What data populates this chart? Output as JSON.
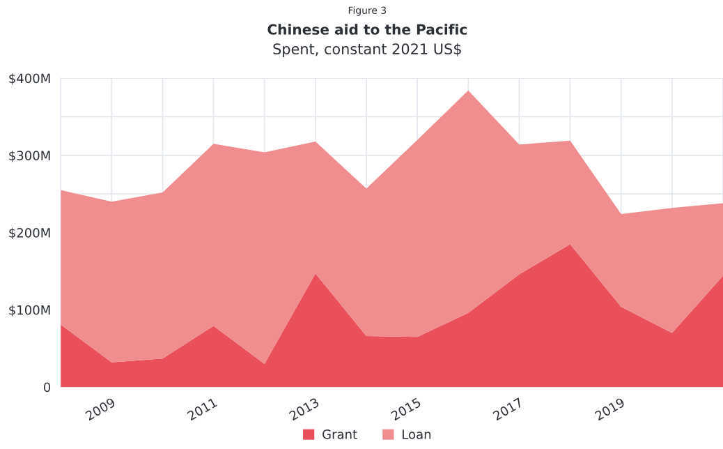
{
  "chart_data": {
    "type": "area",
    "title": "Chinese aid to the Pacific",
    "subtitle": "Spent, constant 2021 US$",
    "annotations": [
      "Figure 3"
    ],
    "x": [
      2008,
      2009,
      2010,
      2011,
      2012,
      2013,
      2014,
      2015,
      2016,
      2017,
      2018,
      2019,
      2020,
      2021
    ],
    "stacked": true,
    "series": [
      {
        "name": "Grant",
        "color": "#e9505a",
        "values": [
          81,
          32,
          37,
          79,
          30,
          147,
          66,
          65,
          96,
          146,
          185,
          104,
          70,
          144
        ]
      },
      {
        "name": "Loan",
        "color": "#f08e8f",
        "values": [
          174,
          208,
          215,
          236,
          274,
          171,
          191,
          255,
          288,
          168,
          134,
          120,
          162,
          94
        ]
      }
    ],
    "xlim": [
      2008,
      2021
    ],
    "xticks": [
      {
        "value": 2008,
        "label": null
      },
      2009,
      {
        "value": 2010,
        "label": null
      },
      2011,
      {
        "value": 2012,
        "label": null
      },
      2013,
      {
        "value": 2014,
        "label": null
      },
      2015,
      {
        "value": 2016,
        "label": null
      },
      2017,
      {
        "value": 2018,
        "label": null
      },
      2019,
      {
        "value": 2020,
        "label": null
      },
      {
        "value": 2021,
        "label": null
      }
    ],
    "ylim": [
      0,
      400
    ],
    "yticks": [
      0,
      {
        "value": 100,
        "label": "$100M"
      },
      {
        "value": 200,
        "label": "$200M"
      },
      {
        "value": 250,
        "label": null
      },
      {
        "value": 300,
        "label": "$300M"
      },
      {
        "value": 350,
        "label": null
      },
      {
        "value": 400,
        "label": "$400M"
      }
    ],
    "grid": true,
    "legend": "bottom"
  }
}
